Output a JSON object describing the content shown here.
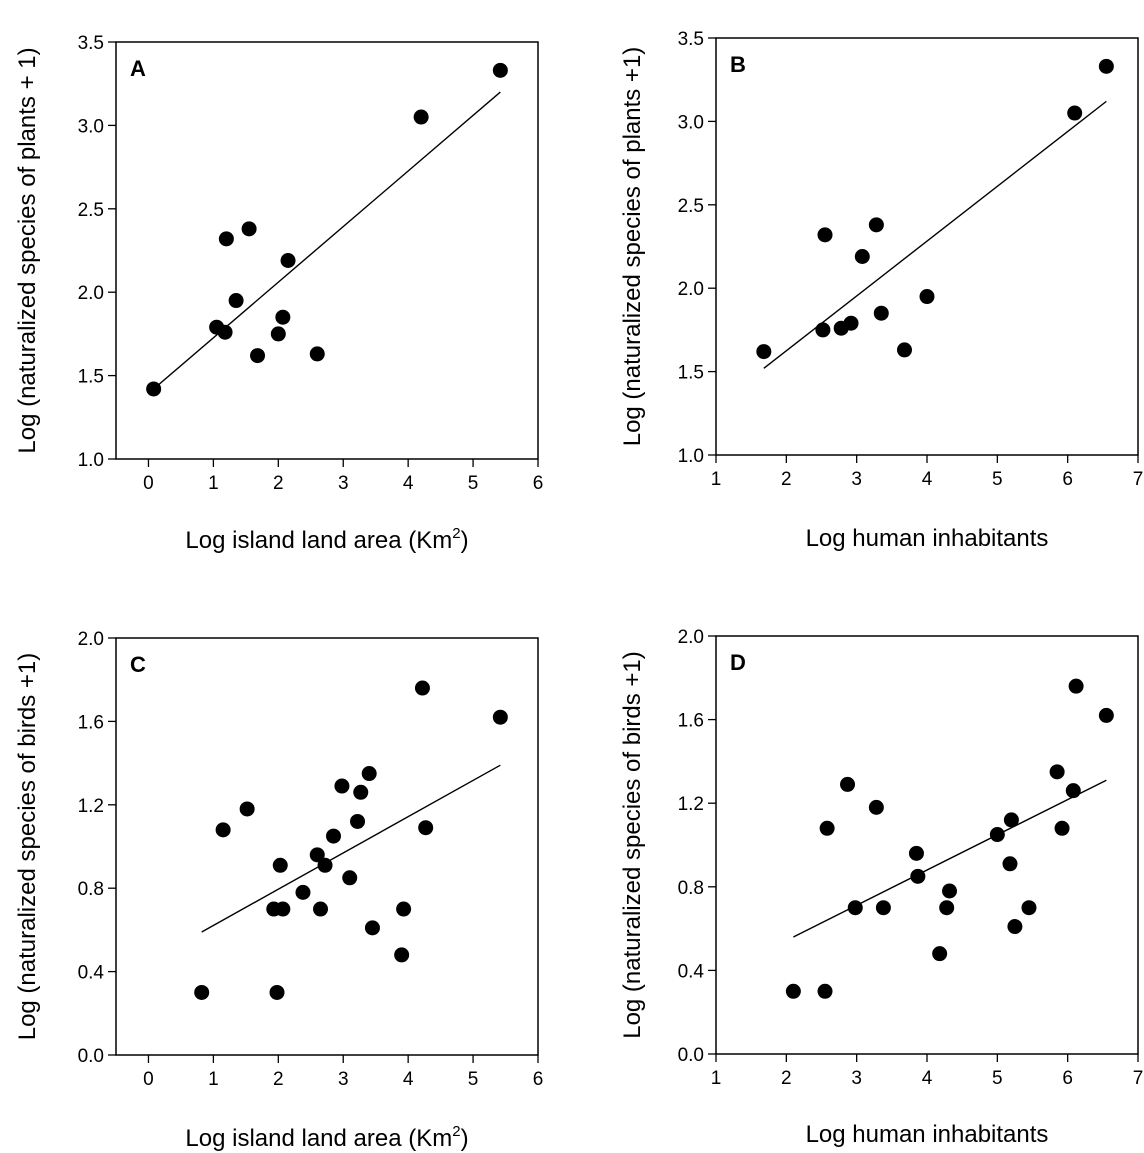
{
  "chart_data": [
    {
      "type": "scatter",
      "panel": "A",
      "xlabel": "Log island land area (Km",
      "xlabel_sup": "2",
      "xlabel_end": ")",
      "ylabel": "Log (naturalized species of plants + 1)",
      "xlim": [
        -0.5,
        6
      ],
      "ylim": [
        1.0,
        3.5
      ],
      "xticks": [
        "0",
        "1",
        "2",
        "3",
        "4",
        "5",
        "6"
      ],
      "yticks": [
        "1.0",
        "1.5",
        "2.0",
        "2.5",
        "3.0",
        "3.5"
      ],
      "points": [
        {
          "x": 0.08,
          "y": 1.42
        },
        {
          "x": 1.05,
          "y": 1.79
        },
        {
          "x": 1.18,
          "y": 1.76
        },
        {
          "x": 1.2,
          "y": 2.32
        },
        {
          "x": 1.35,
          "y": 1.95
        },
        {
          "x": 1.55,
          "y": 2.38
        },
        {
          "x": 1.68,
          "y": 1.62
        },
        {
          "x": 2.0,
          "y": 1.75
        },
        {
          "x": 2.07,
          "y": 1.85
        },
        {
          "x": 2.15,
          "y": 2.19
        },
        {
          "x": 2.6,
          "y": 1.63
        },
        {
          "x": 4.2,
          "y": 3.05
        },
        {
          "x": 5.42,
          "y": 3.33
        }
      ],
      "fit": {
        "x1": 0.08,
        "y1": 1.42,
        "x2": 5.42,
        "y2": 3.2
      }
    },
    {
      "type": "scatter",
      "panel": "B",
      "xlabel": "Log human inhabitants",
      "ylabel": "Log (naturalized species of plants +1)",
      "xlim": [
        1,
        7
      ],
      "ylim": [
        1.0,
        3.5
      ],
      "xticks": [
        "1",
        "2",
        "3",
        "4",
        "5",
        "6",
        "7"
      ],
      "yticks": [
        "1.0",
        "1.5",
        "2.0",
        "2.5",
        "3.0",
        "3.5"
      ],
      "points": [
        {
          "x": 1.68,
          "y": 1.62
        },
        {
          "x": 2.52,
          "y": 1.75
        },
        {
          "x": 2.55,
          "y": 2.32
        },
        {
          "x": 2.78,
          "y": 1.76
        },
        {
          "x": 2.92,
          "y": 1.79
        },
        {
          "x": 3.08,
          "y": 2.19
        },
        {
          "x": 3.28,
          "y": 2.38
        },
        {
          "x": 3.35,
          "y": 1.85
        },
        {
          "x": 3.68,
          "y": 1.63
        },
        {
          "x": 4.0,
          "y": 1.95
        },
        {
          "x": 6.1,
          "y": 3.05
        },
        {
          "x": 6.55,
          "y": 3.33
        }
      ],
      "fit": {
        "x1": 1.68,
        "y1": 1.52,
        "x2": 6.55,
        "y2": 3.12
      }
    },
    {
      "type": "scatter",
      "panel": "C",
      "xlabel": "Log island land area (Km",
      "xlabel_sup": "2",
      "xlabel_end": ")",
      "ylabel": "Log (naturalized species of birds +1)",
      "xlim": [
        -0.5,
        6
      ],
      "ylim": [
        0.0,
        2.0
      ],
      "xticks": [
        "0",
        "1",
        "2",
        "3",
        "4",
        "5",
        "6"
      ],
      "yticks": [
        "0.0",
        "0.4",
        "0.8",
        "1.2",
        "1.6",
        "2.0"
      ],
      "points": [
        {
          "x": 0.82,
          "y": 0.3
        },
        {
          "x": 1.15,
          "y": 1.08
        },
        {
          "x": 1.52,
          "y": 1.18
        },
        {
          "x": 1.93,
          "y": 0.7
        },
        {
          "x": 1.98,
          "y": 0.3
        },
        {
          "x": 2.03,
          "y": 0.91
        },
        {
          "x": 2.07,
          "y": 0.7
        },
        {
          "x": 2.38,
          "y": 0.78
        },
        {
          "x": 2.6,
          "y": 0.96
        },
        {
          "x": 2.65,
          "y": 0.7
        },
        {
          "x": 2.72,
          "y": 0.91
        },
        {
          "x": 2.85,
          "y": 1.05
        },
        {
          "x": 2.98,
          "y": 1.29
        },
        {
          "x": 3.1,
          "y": 0.85
        },
        {
          "x": 3.22,
          "y": 1.12
        },
        {
          "x": 3.27,
          "y": 1.26
        },
        {
          "x": 3.4,
          "y": 1.35
        },
        {
          "x": 3.45,
          "y": 0.61
        },
        {
          "x": 3.9,
          "y": 0.48
        },
        {
          "x": 3.93,
          "y": 0.7
        },
        {
          "x": 4.22,
          "y": 1.76
        },
        {
          "x": 4.27,
          "y": 1.09
        },
        {
          "x": 5.42,
          "y": 1.62
        }
      ],
      "fit": {
        "x1": 0.82,
        "y1": 0.59,
        "x2": 5.42,
        "y2": 1.39
      }
    },
    {
      "type": "scatter",
      "panel": "D",
      "xlabel": "Log human inhabitants",
      "ylabel": "Log (naturalized species of birds +1)",
      "xlim": [
        1,
        7
      ],
      "ylim": [
        0.0,
        2.0
      ],
      "xticks": [
        "1",
        "2",
        "3",
        "4",
        "5",
        "6",
        "7"
      ],
      "yticks": [
        "0.0",
        "0.4",
        "0.8",
        "1.2",
        "1.6",
        "2.0"
      ],
      "points": [
        {
          "x": 2.1,
          "y": 0.3
        },
        {
          "x": 2.55,
          "y": 0.3
        },
        {
          "x": 2.58,
          "y": 1.08
        },
        {
          "x": 2.87,
          "y": 1.29
        },
        {
          "x": 2.98,
          "y": 0.7
        },
        {
          "x": 3.28,
          "y": 1.18
        },
        {
          "x": 3.38,
          "y": 0.7
        },
        {
          "x": 3.85,
          "y": 0.96
        },
        {
          "x": 3.87,
          "y": 0.85
        },
        {
          "x": 4.18,
          "y": 0.48
        },
        {
          "x": 4.28,
          "y": 0.7
        },
        {
          "x": 4.32,
          "y": 0.78
        },
        {
          "x": 5.0,
          "y": 1.05
        },
        {
          "x": 5.18,
          "y": 0.91
        },
        {
          "x": 5.2,
          "y": 1.12
        },
        {
          "x": 5.25,
          "y": 0.61
        },
        {
          "x": 5.45,
          "y": 0.7
        },
        {
          "x": 5.85,
          "y": 1.35
        },
        {
          "x": 5.92,
          "y": 1.08
        },
        {
          "x": 6.08,
          "y": 1.26
        },
        {
          "x": 6.12,
          "y": 1.76
        },
        {
          "x": 6.55,
          "y": 1.62
        }
      ],
      "fit": {
        "x1": 2.1,
        "y1": 0.56,
        "x2": 6.55,
        "y2": 1.31
      }
    }
  ]
}
